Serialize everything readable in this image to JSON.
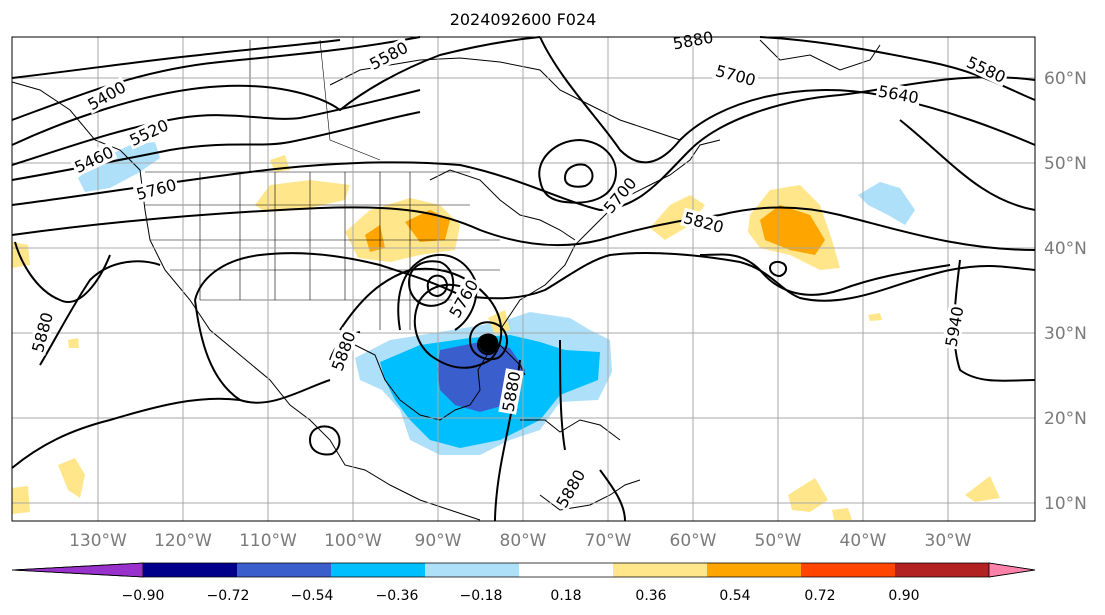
{
  "title": "2024092600 F024",
  "lon_labels": [
    "130°W",
    "120°W",
    "110°W",
    "100°W",
    "90°W",
    "80°W",
    "70°W",
    "60°W",
    "50°W",
    "40°W",
    "30°W"
  ],
  "lat_labels": [
    "60°N",
    "50°N",
    "40°N",
    "30°N",
    "20°N",
    "10°N"
  ],
  "contour_labels": [
    "5580",
    "5400",
    "5520",
    "5460",
    "5760",
    "5700",
    "5640",
    "5580",
    "5820",
    "5700",
    "5880",
    "5880",
    "5760",
    "5880",
    "5880",
    "5940",
    "5880"
  ],
  "colorbar": {
    "ticks": [
      "−0.90",
      "−0.72",
      "−0.54",
      "−0.36",
      "−0.18",
      "0.18",
      "0.36",
      "0.54",
      "0.72",
      "0.90"
    ],
    "colors": [
      "#9932cc",
      "#00008b",
      "#3a5fcd",
      "#00bfff",
      "#aee0fa",
      "#ffffff",
      "#ffe68a",
      "#ffa500",
      "#ff4500",
      "#b22222",
      "#ff82ab"
    ]
  },
  "shading_colors": {
    "neg_light": "#aee0fa",
    "neg_mid": "#00bfff",
    "neg_strong": "#3a5fcd",
    "pos_light": "#ffe68a",
    "pos_mid": "#ffa500"
  }
}
